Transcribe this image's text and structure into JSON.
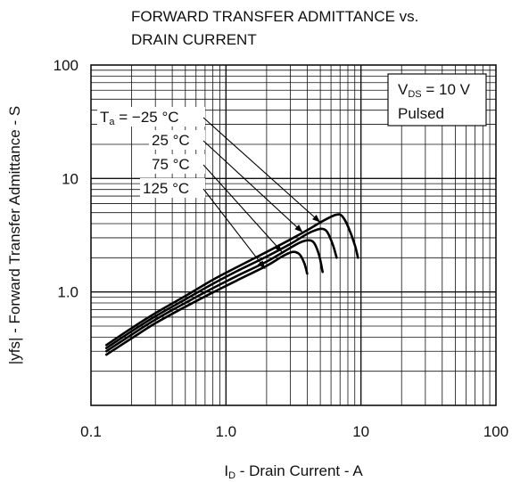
{
  "chart_data": {
    "type": "line",
    "title_line1": "FORWARD TRANSFER ADMITTANCE vs.",
    "title_line2": "DRAIN CURRENT",
    "xlabel": {
      "main": "I",
      "sub": "D",
      "rest": " - Drain Current - A"
    },
    "ylabel": "|yfs| - Forward Transfer Admittance - S",
    "x_scale": "log",
    "y_scale": "log",
    "xlim": [
      0.1,
      100
    ],
    "ylim": [
      0.1,
      100
    ],
    "grid": true,
    "x_ticks": [
      {
        "value": 0.1,
        "label": "0.1"
      },
      {
        "value": 1,
        "label": "1.0"
      },
      {
        "value": 10,
        "label": "10"
      },
      {
        "value": 100,
        "label": "100"
      }
    ],
    "y_ticks": [
      {
        "value": 1,
        "label": "1.0"
      },
      {
        "value": 10,
        "label": "10"
      },
      {
        "value": 100,
        "label": "100"
      }
    ],
    "conditions": {
      "line1_main": "V",
      "line1_sub": "DS",
      "line1_rest": " = 10 V",
      "line2": "Pulsed"
    },
    "series": [
      {
        "name": "Ta = −25 °C",
        "x": [
          0.13,
          0.2,
          0.3,
          0.5,
          0.8,
          1.2,
          2,
          3,
          4,
          5,
          6,
          6.6,
          7.2,
          8,
          9,
          9.5
        ],
        "y": [
          0.34,
          0.48,
          0.65,
          0.92,
          1.28,
          1.65,
          2.25,
          2.9,
          3.5,
          4.1,
          4.6,
          4.8,
          4.7,
          3.8,
          2.6,
          2.0
        ]
      },
      {
        "name": "25 °C",
        "x": [
          0.13,
          0.2,
          0.3,
          0.5,
          0.8,
          1.2,
          2,
          3,
          4,
          4.6,
          5.1,
          5.6,
          6.2,
          6.6
        ],
        "y": [
          0.32,
          0.45,
          0.61,
          0.86,
          1.18,
          1.52,
          2.05,
          2.65,
          3.25,
          3.5,
          3.6,
          3.4,
          2.6,
          2.0
        ]
      },
      {
        "name": "75 °C",
        "x": [
          0.13,
          0.2,
          0.3,
          0.5,
          0.8,
          1.2,
          2,
          3,
          3.6,
          4.1,
          4.5,
          4.9,
          5.2
        ],
        "y": [
          0.3,
          0.42,
          0.57,
          0.8,
          1.08,
          1.38,
          1.85,
          2.45,
          2.75,
          2.85,
          2.7,
          2.1,
          1.5
        ]
      },
      {
        "name": "125 °C",
        "x": [
          0.13,
          0.2,
          0.3,
          0.5,
          0.8,
          1.2,
          2,
          2.6,
          3.1,
          3.5,
          3.8,
          4
        ],
        "y": [
          0.28,
          0.39,
          0.53,
          0.74,
          0.99,
          1.26,
          1.7,
          2.05,
          2.25,
          2.15,
          1.8,
          1.45
        ]
      }
    ],
    "annotations": [
      {
        "main": "T",
        "sub": "a",
        "rest": " = −25 °C",
        "points_to": [
          5.0,
          4.1
        ]
      },
      {
        "main": "25 °C",
        "sub": "",
        "rest": "",
        "points_to": [
          3.7,
          3.35
        ]
      },
      {
        "main": "75 °C",
        "sub": "",
        "rest": "",
        "points_to": [
          2.6,
          2.25
        ]
      },
      {
        "main": "125 °C",
        "sub": "",
        "rest": "",
        "points_to": [
          1.95,
          1.6
        ]
      }
    ]
  }
}
